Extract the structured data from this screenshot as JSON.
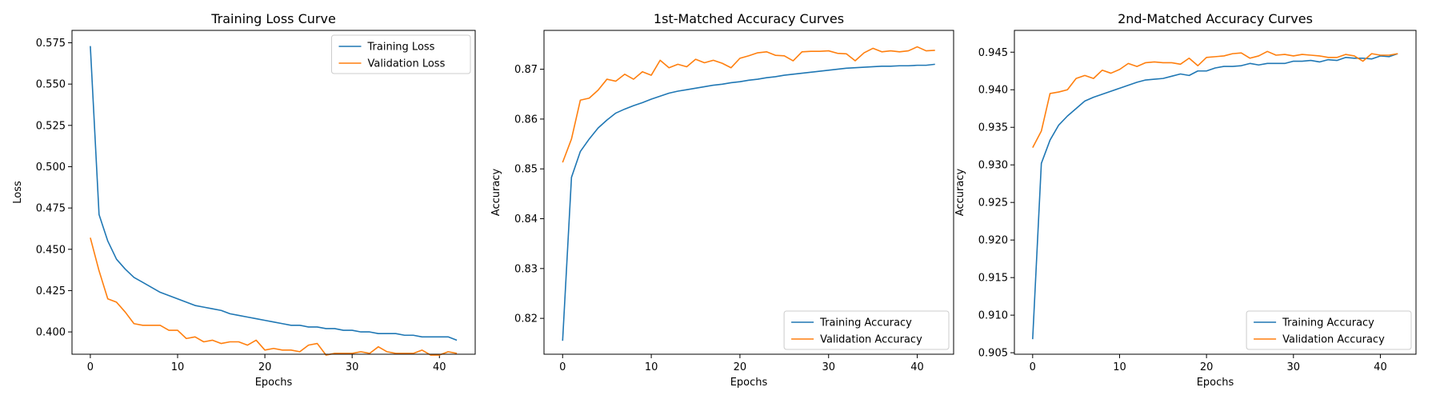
{
  "colors": {
    "series_a": "#1f77b4",
    "series_b": "#ff7f0e",
    "axis": "#000000"
  },
  "chart_data": [
    {
      "type": "line",
      "title": "Training Loss Curve",
      "xlabel": "Epochs",
      "ylabel": "Loss",
      "xlim": [
        -2.1,
        44.1
      ],
      "ylim": [
        0.3865,
        0.5825
      ],
      "xticks": [
        0,
        10,
        20,
        30,
        40
      ],
      "yticks": [
        0.4,
        0.425,
        0.45,
        0.475,
        0.5,
        0.525,
        0.55,
        0.575
      ],
      "ytick_decimals": 3,
      "legend_position": "top-right",
      "grid": false,
      "x": [
        0,
        1,
        2,
        3,
        4,
        5,
        6,
        7,
        8,
        9,
        10,
        11,
        12,
        13,
        14,
        15,
        16,
        17,
        18,
        19,
        20,
        21,
        22,
        23,
        24,
        25,
        26,
        27,
        28,
        29,
        30,
        31,
        32,
        33,
        34,
        35,
        36,
        37,
        38,
        39,
        40,
        41,
        42
      ],
      "series": [
        {
          "name": "Training Loss",
          "values": [
            0.573,
            0.471,
            0.455,
            0.444,
            0.438,
            0.433,
            0.43,
            0.427,
            0.424,
            0.422,
            0.42,
            0.418,
            0.416,
            0.415,
            0.414,
            0.413,
            0.411,
            0.41,
            0.409,
            0.408,
            0.407,
            0.406,
            0.405,
            0.404,
            0.404,
            0.403,
            0.403,
            0.402,
            0.402,
            0.401,
            0.401,
            0.4,
            0.4,
            0.399,
            0.399,
            0.399,
            0.398,
            0.398,
            0.397,
            0.397,
            0.397,
            0.397,
            0.395
          ]
        },
        {
          "name": "Validation Loss",
          "values": [
            0.457,
            0.437,
            0.42,
            0.418,
            0.412,
            0.405,
            0.404,
            0.404,
            0.404,
            0.401,
            0.401,
            0.396,
            0.397,
            0.394,
            0.395,
            0.393,
            0.394,
            0.394,
            0.392,
            0.395,
            0.389,
            0.39,
            0.389,
            0.389,
            0.388,
            0.392,
            0.393,
            0.386,
            0.387,
            0.387,
            0.387,
            0.388,
            0.387,
            0.391,
            0.388,
            0.387,
            0.387,
            0.387,
            0.389,
            0.386,
            0.386,
            0.388,
            0.387
          ]
        }
      ]
    },
    {
      "type": "line",
      "title": "1st-Matched Accuracy Curves",
      "xlabel": "Epochs",
      "ylabel": "Accuracy",
      "xlim": [
        -2.1,
        44.1
      ],
      "ylim": [
        0.8128,
        0.8778
      ],
      "xticks": [
        0,
        10,
        20,
        30,
        40
      ],
      "yticks": [
        0.82,
        0.83,
        0.84,
        0.85,
        0.86,
        0.87
      ],
      "ytick_decimals": 2,
      "legend_position": "bottom-right",
      "grid": false,
      "x": [
        0,
        1,
        2,
        3,
        4,
        5,
        6,
        7,
        8,
        9,
        10,
        11,
        12,
        13,
        14,
        15,
        16,
        17,
        18,
        19,
        20,
        21,
        22,
        23,
        24,
        25,
        26,
        27,
        28,
        29,
        30,
        31,
        32,
        33,
        34,
        35,
        36,
        37,
        38,
        39,
        40,
        41,
        42
      ],
      "series": [
        {
          "name": "Training Accuracy",
          "values": [
            0.8155,
            0.8483,
            0.8535,
            0.856,
            0.8582,
            0.8598,
            0.8612,
            0.862,
            0.8627,
            0.8633,
            0.864,
            0.8646,
            0.8652,
            0.8656,
            0.8659,
            0.8662,
            0.8665,
            0.8668,
            0.867,
            0.8673,
            0.8675,
            0.8678,
            0.868,
            0.8683,
            0.8685,
            0.8688,
            0.869,
            0.8692,
            0.8694,
            0.8696,
            0.8698,
            0.87,
            0.8702,
            0.8703,
            0.8704,
            0.8705,
            0.8706,
            0.8706,
            0.8707,
            0.8707,
            0.8708,
            0.8708,
            0.871
          ]
        },
        {
          "name": "Validation Accuracy",
          "values": [
            0.8513,
            0.856,
            0.8638,
            0.8642,
            0.8658,
            0.868,
            0.8676,
            0.869,
            0.868,
            0.8695,
            0.8688,
            0.8718,
            0.8703,
            0.871,
            0.8705,
            0.872,
            0.8713,
            0.8718,
            0.8712,
            0.8703,
            0.8722,
            0.8727,
            0.8733,
            0.8735,
            0.8728,
            0.8727,
            0.8717,
            0.8735,
            0.8736,
            0.8736,
            0.8737,
            0.8732,
            0.8731,
            0.8717,
            0.8733,
            0.8742,
            0.8735,
            0.8737,
            0.8735,
            0.8737,
            0.8745,
            0.8737,
            0.8738
          ]
        }
      ]
    },
    {
      "type": "line",
      "title": "2nd-Matched Accuracy Curves",
      "xlabel": "Epochs",
      "ylabel": "Accuracy",
      "xlim": [
        -2.1,
        44.1
      ],
      "ylim": [
        0.9048,
        0.9479
      ],
      "xticks": [
        0,
        10,
        20,
        30,
        40
      ],
      "yticks": [
        0.905,
        0.91,
        0.915,
        0.92,
        0.925,
        0.93,
        0.935,
        0.94,
        0.945
      ],
      "ytick_decimals": 3,
      "legend_position": "bottom-right",
      "grid": false,
      "x": [
        0,
        1,
        2,
        3,
        4,
        5,
        6,
        7,
        8,
        9,
        10,
        11,
        12,
        13,
        14,
        15,
        16,
        17,
        18,
        19,
        20,
        21,
        22,
        23,
        24,
        25,
        26,
        27,
        28,
        29,
        30,
        31,
        32,
        33,
        34,
        35,
        36,
        37,
        38,
        39,
        40,
        41,
        42
      ],
      "series": [
        {
          "name": "Training Accuracy",
          "values": [
            0.9068,
            0.9302,
            0.9333,
            0.9353,
            0.9365,
            0.9375,
            0.9385,
            0.939,
            0.9394,
            0.9398,
            0.9402,
            0.9406,
            0.941,
            0.9413,
            0.9414,
            0.9415,
            0.9418,
            0.9421,
            0.9419,
            0.9425,
            0.9425,
            0.9429,
            0.9431,
            0.9431,
            0.9432,
            0.9435,
            0.9433,
            0.9435,
            0.9435,
            0.9435,
            0.9438,
            0.9438,
            0.9439,
            0.9437,
            0.944,
            0.9439,
            0.9443,
            0.9442,
            0.9442,
            0.9441,
            0.9445,
            0.9444,
            0.9448
          ]
        },
        {
          "name": "Validation Accuracy",
          "values": [
            0.9323,
            0.9345,
            0.9395,
            0.9397,
            0.94,
            0.9415,
            0.9419,
            0.9415,
            0.9426,
            0.9422,
            0.9427,
            0.9435,
            0.9431,
            0.9436,
            0.9437,
            0.9436,
            0.9436,
            0.9434,
            0.9442,
            0.9432,
            0.9443,
            0.9444,
            0.9445,
            0.9448,
            0.9449,
            0.9442,
            0.9445,
            0.9451,
            0.9446,
            0.9447,
            0.9445,
            0.9447,
            0.9446,
            0.9445,
            0.9443,
            0.9443,
            0.9447,
            0.9445,
            0.9438,
            0.9448,
            0.9446,
            0.9446,
            0.9448
          ]
        }
      ]
    }
  ]
}
